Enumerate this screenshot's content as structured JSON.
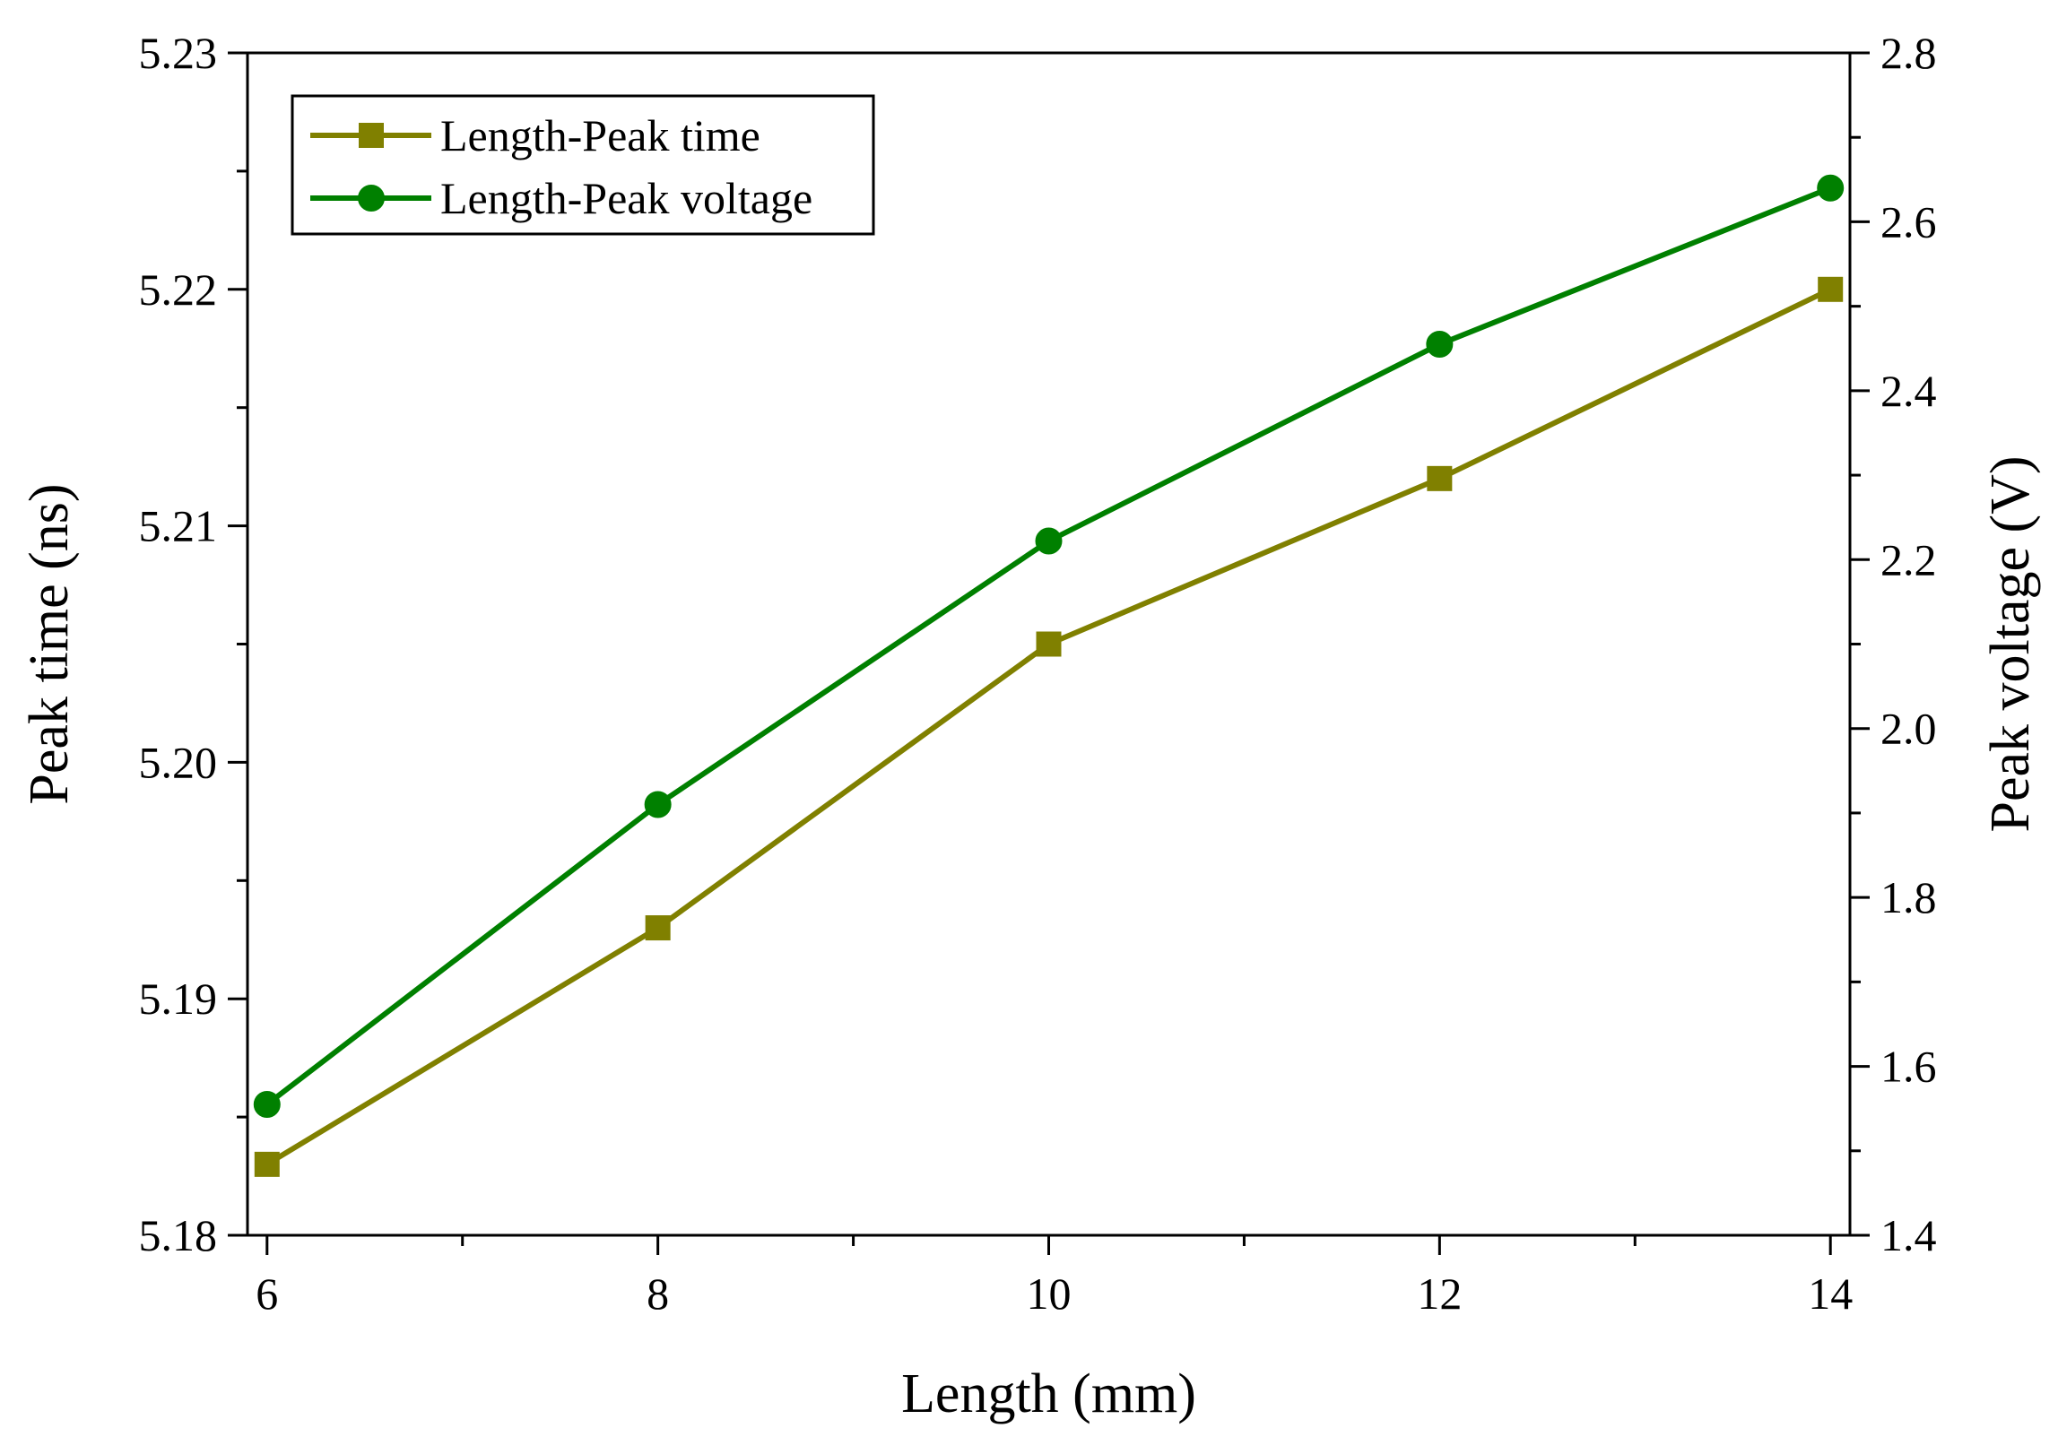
{
  "chart_data": {
    "type": "line",
    "x": [
      6,
      8,
      10,
      12,
      14
    ],
    "xlabel": "Length (mm)",
    "ylabel": "Peak time (ns)",
    "y2label": "Peak voltage (V)",
    "xlim": [
      5.9,
      14.1
    ],
    "ylim": [
      5.18,
      5.23
    ],
    "y2lim": [
      1.4,
      2.8
    ],
    "xticks": [
      "6",
      "8",
      "10",
      "12",
      "14"
    ],
    "yticks": [
      "5.18",
      "5.19",
      "5.20",
      "5.21",
      "5.22",
      "5.23"
    ],
    "y2ticks": [
      "1.4",
      "1.6",
      "1.8",
      "2.0",
      "2.2",
      "2.4",
      "2.6",
      "2.8"
    ],
    "legend_position": "top-left",
    "series": [
      {
        "name": "Length-Peak time",
        "axis": "left",
        "marker": "square",
        "color": "#808000",
        "values": [
          5.183,
          5.193,
          5.205,
          5.212,
          5.22
        ]
      },
      {
        "name": "Length-Peak voltage",
        "axis": "right",
        "marker": "circle",
        "color": "#008000",
        "values": [
          1.555,
          1.91,
          2.222,
          2.455,
          2.64
        ]
      }
    ]
  }
}
